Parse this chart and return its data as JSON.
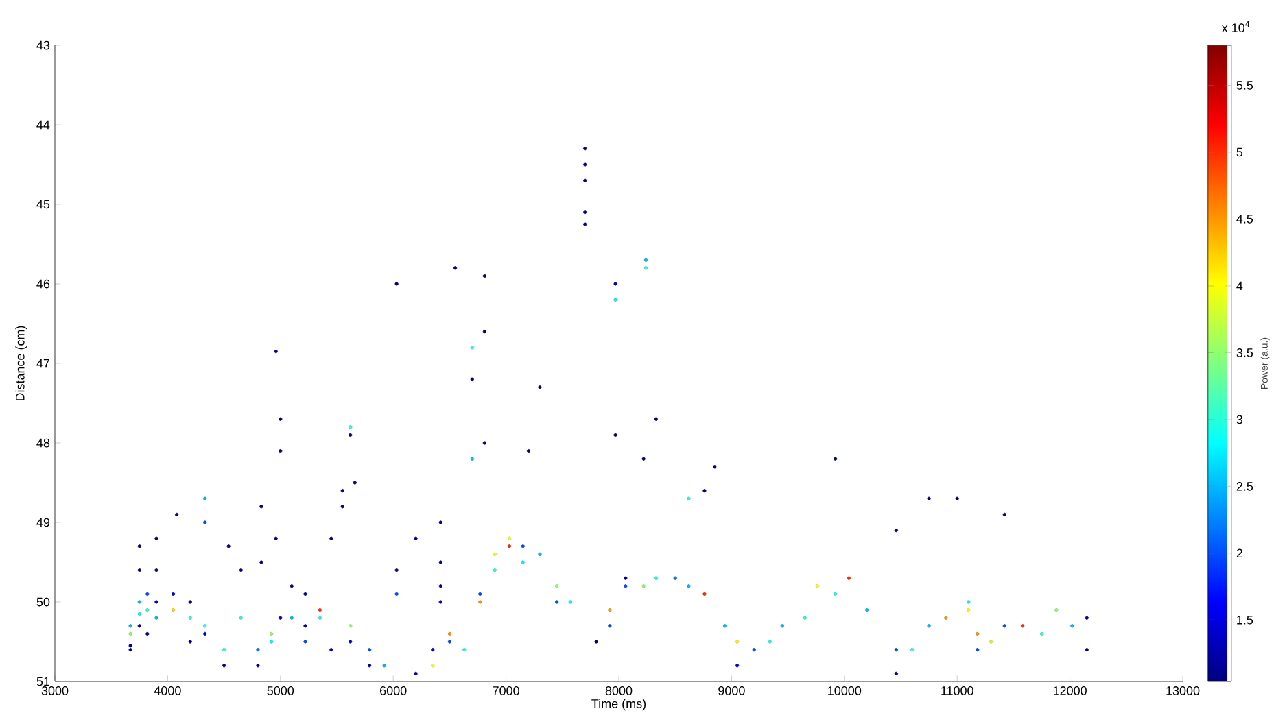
{
  "chart_data": {
    "type": "scatter",
    "xlabel": "Time (ms)",
    "ylabel": "Distance (cm)",
    "clabel": "Power (a.u.)",
    "annotations": [
      "x 10$^{4}$"
    ],
    "xlim": [
      3000,
      13000
    ],
    "xticks": [
      3000,
      4000,
      5000,
      6000,
      7000,
      8000,
      9000,
      10000,
      11000,
      12000,
      13000
    ],
    "ylim": [
      51,
      43
    ],
    "yticks": [
      43,
      44,
      45,
      46,
      47,
      48,
      49,
      50,
      51
    ],
    "clim": [
      1.04,
      5.8
    ],
    "cticks": [
      1.5,
      2,
      2.5,
      3,
      3.5,
      4,
      4.5,
      5,
      5.5
    ],
    "marker": "circle",
    "grid": false,
    "x": [
      3670,
      3670,
      3670,
      3670,
      3750,
      3750,
      3750,
      3750,
      3750,
      3820,
      3820,
      3820,
      3900,
      3900,
      3900,
      3900,
      4050,
      4050,
      4080,
      4200,
      4200,
      4200,
      4330,
      4330,
      4330,
      4330,
      4500,
      4500,
      4540,
      4650,
      4650,
      4800,
      4800,
      4830,
      4830,
      4920,
      4920,
      4960,
      4960,
      5000,
      5000,
      5000,
      5100,
      5100,
      5220,
      5220,
      5220,
      5350,
      5350,
      5450,
      5450,
      5550,
      5550,
      5620,
      5620,
      5620,
      5620,
      5660,
      5790,
      5790,
      5920,
      6030,
      6030,
      6030,
      6200,
      6200,
      6350,
      6350,
      6420,
      6420,
      6420,
      6420,
      6500,
      6500,
      6550,
      6630,
      6700,
      6700,
      6700,
      6770,
      6770,
      6810,
      6810,
      6810,
      6900,
      6900,
      7030,
      7030,
      7150,
      7150,
      7200,
      7300,
      7300,
      7450,
      7450,
      7570,
      7700,
      7700,
      7700,
      7700,
      7700,
      7800,
      7920,
      7920,
      7970,
      7970,
      7970,
      8060,
      8060,
      8220,
      8220,
      8240,
      8240,
      8330,
      8330,
      8500,
      8620,
      8620,
      8760,
      8760,
      8850,
      8940,
      9050,
      9050,
      9200,
      9340,
      9450,
      9650,
      9760,
      9920,
      9920,
      10040,
      10200,
      10460,
      10460,
      10460,
      10600,
      10750,
      10750,
      10900,
      11000,
      11100,
      11100,
      11180,
      11180,
      11300,
      11420,
      11420,
      11580,
      11750,
      11880,
      12020,
      12150,
      12150
    ],
    "values": [
      50.4,
      50.3,
      50.55,
      50.6,
      49.3,
      49.6,
      50.0,
      50.15,
      50.3,
      50.1,
      49.9,
      50.4,
      49.2,
      49.6,
      50.0,
      50.2,
      50.1,
      49.9,
      48.9,
      50.2,
      50.0,
      50.5,
      48.7,
      49.0,
      50.3,
      50.4,
      50.6,
      50.8,
      49.3,
      49.6,
      50.2,
      50.6,
      50.8,
      48.8,
      49.5,
      50.4,
      50.5,
      46.85,
      49.2,
      47.7,
      48.1,
      50.2,
      50.2,
      49.8,
      50.5,
      50.3,
      49.9,
      50.1,
      50.2,
      49.2,
      50.6,
      48.6,
      48.8,
      47.8,
      47.9,
      50.3,
      50.5,
      48.5,
      50.6,
      50.8,
      50.8,
      49.6,
      49.9,
      46.0,
      49.2,
      50.9,
      50.8,
      50.6,
      49.0,
      49.5,
      50.0,
      49.8,
      50.5,
      50.4,
      45.8,
      50.6,
      47.2,
      46.8,
      48.2,
      50.0,
      49.9,
      45.9,
      46.6,
      48.0,
      49.6,
      49.4,
      49.2,
      49.3,
      49.5,
      49.3,
      48.1,
      49.4,
      47.3,
      49.8,
      50.0,
      50.0,
      44.3,
      44.5,
      44.7,
      45.1,
      45.25,
      50.5,
      50.1,
      50.3,
      46.2,
      46.0,
      47.9,
      49.8,
      49.7,
      49.8,
      48.2,
      45.7,
      45.8,
      49.7,
      47.7,
      49.7,
      49.8,
      48.7,
      49.9,
      48.6,
      48.3,
      50.3,
      50.5,
      50.8,
      50.6,
      50.5,
      50.3,
      50.2,
      49.8,
      49.9,
      48.2,
      49.7,
      50.1,
      50.6,
      49.1,
      50.9,
      50.6,
      50.3,
      48.7,
      50.2,
      48.7,
      50.0,
      50.1,
      50.4,
      50.6,
      50.5,
      48.9,
      50.3,
      50.3,
      50.4,
      50.1,
      50.3,
      50.2,
      50.6
    ],
    "cvalues": [
      3.5,
      2.5,
      1.2,
      1.2,
      1.1,
      1.1,
      2.5,
      2.8,
      1.2,
      3,
      2,
      1.2,
      1.1,
      1.1,
      1.5,
      2.5,
      4.2,
      1.5,
      1.1,
      3,
      1.2,
      1.2,
      2.5,
      2,
      3,
      1.5,
      3,
      1.2,
      1.1,
      1.1,
      3,
      2.2,
      1.2,
      1.1,
      1.1,
      3.5,
      2.8,
      1.2,
      1.1,
      1.1,
      1.2,
      1.5,
      2.5,
      1.1,
      2,
      1.2,
      1.2,
      5,
      3,
      1.1,
      1.5,
      1.1,
      1.1,
      3,
      1.1,
      3.5,
      1.5,
      1.1,
      2,
      1.2,
      2.5,
      1.1,
      2,
      1.1,
      1.1,
      1.2,
      4,
      1.5,
      1.1,
      1.2,
      1.5,
      1.2,
      2,
      4.5,
      1.1,
      3,
      1.1,
      3,
      2.5,
      4.5,
      2,
      1.1,
      1.1,
      1.1,
      3,
      4,
      4,
      5,
      2.8,
      2,
      1.1,
      2.5,
      1.1,
      3.5,
      2,
      2.8,
      1.1,
      1.2,
      1.1,
      1.1,
      1.1,
      1.1,
      4.5,
      2,
      2.8,
      1.5,
      1.1,
      2,
      1.2,
      3.5,
      1.1,
      2.5,
      3,
      3,
      1.1,
      2.2,
      2.5,
      3,
      5,
      1.1,
      1.1,
      2.5,
      4,
      1.5,
      2,
      3,
      2.5,
      3,
      4,
      3,
      1.1,
      5,
      2.5,
      2,
      1.1,
      1.1,
      3,
      2.5,
      1.1,
      4.5,
      1.1,
      2.8,
      4,
      4.5,
      2,
      3.8,
      1.1,
      2,
      5,
      3,
      3.5,
      2.5,
      1.2,
      1.1
    ]
  }
}
